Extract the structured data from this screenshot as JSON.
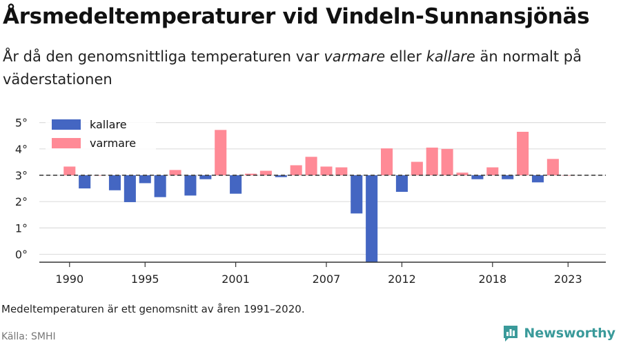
{
  "title": "Årsmedeltemperaturer vid Vindeln-Sunnansjönäs",
  "subtitle": {
    "part1": "År då den genomsnittliga temperaturen var ",
    "warmer": "varmare",
    "part2": " eller ",
    "colder": "kallare",
    "part3": " än normalt på väderstationen"
  },
  "note": "Medeltemperaturen är ett genomsnitt av åren 1991–2020.",
  "source": "Källa: SMHI",
  "brand": {
    "name": "Newsworthy",
    "icon": "newsworthy-logo-icon"
  },
  "colors": {
    "kallare": "#4466c2",
    "varmare": "#ff8a96",
    "grid": "#dddddd",
    "axis": "#333333",
    "text": "#222222",
    "brand": "#3a9a9a"
  },
  "chart_data": {
    "type": "bar",
    "baseline": 3.0,
    "baseline_style": "dashed",
    "ylim": [
      -0.3,
      5.2
    ],
    "yticks": [
      "0°",
      "1°",
      "2°",
      "3°",
      "4°",
      "5°"
    ],
    "ytick_values": [
      0,
      1,
      2,
      3,
      4,
      5
    ],
    "xlim": [
      1988,
      2025.5
    ],
    "xticks": [
      "1990",
      "1995",
      "2001",
      "2007",
      "2012",
      "2018",
      "2023"
    ],
    "xtick_values": [
      1990,
      1995,
      2001,
      2007,
      2012,
      2018,
      2023
    ],
    "grid": true,
    "legend": {
      "position": "top-left",
      "entries": [
        {
          "label": "kallare",
          "color": "#4466c2"
        },
        {
          "label": "varmare",
          "color": "#ff8a96"
        }
      ]
    },
    "years": [
      1990,
      1991,
      1992,
      1993,
      1994,
      1995,
      1996,
      1997,
      1998,
      1999,
      2000,
      2001,
      2002,
      2003,
      2004,
      2005,
      2006,
      2007,
      2008,
      2009,
      2010,
      2011,
      2012,
      2013,
      2014,
      2015,
      2016,
      2017,
      2018,
      2019,
      2020,
      2021,
      2022,
      2023
    ],
    "values": [
      3.33,
      2.5,
      3.0,
      2.43,
      1.98,
      2.7,
      2.17,
      3.2,
      2.23,
      2.85,
      4.72,
      2.3,
      3.06,
      3.17,
      2.93,
      3.38,
      3.7,
      3.33,
      3.3,
      1.55,
      -0.3,
      4.02,
      2.37,
      3.51,
      4.05,
      4.0,
      3.1,
      2.85,
      3.3,
      2.85,
      4.65,
      2.73,
      3.62,
      3.0
    ]
  }
}
